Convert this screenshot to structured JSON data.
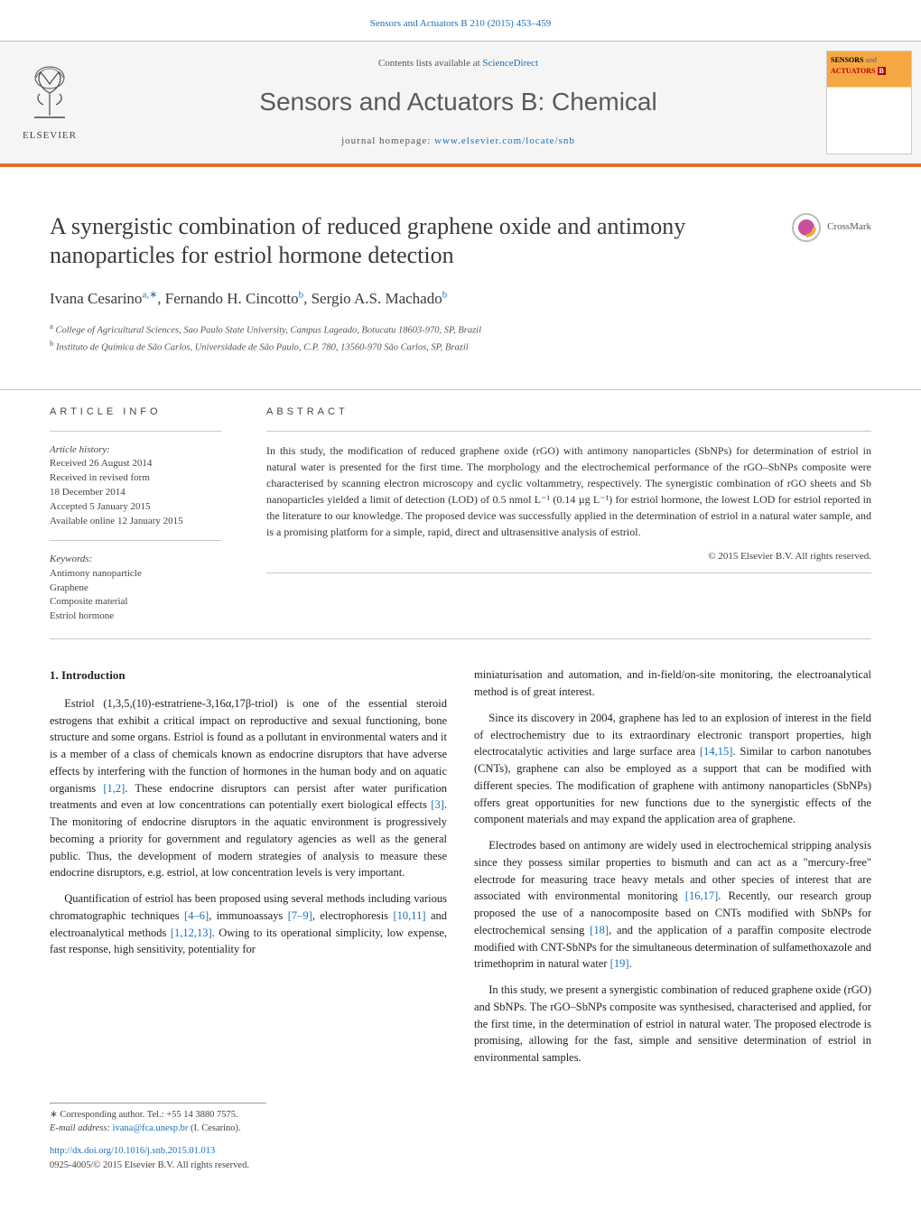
{
  "journal_ref": {
    "text": "Sensors and Actuators B 210 (2015) 453–459",
    "link_color": "#1a6fb8"
  },
  "header": {
    "contents_text": "Contents lists available at ",
    "contents_link": "ScienceDirect",
    "journal_title": "Sensors and Actuators B: Chemical",
    "homepage_label": "journal homepage: ",
    "homepage_url": "www.elsevier.com/locate/snb",
    "elsevier_label": "ELSEVIER",
    "cover_label1": "SENSORS",
    "cover_label2": "ACTUATORS",
    "cover_sub": "B"
  },
  "article": {
    "title": "A synergistic combination of reduced graphene oxide and antimony nanoparticles for estriol hormone detection",
    "crossmark_label": "CrossMark",
    "authors_html": "Ivana Cesarino",
    "author1": "Ivana Cesarino",
    "author1_sup": "a,∗",
    "author2": "Fernando H. Cincotto",
    "author2_sup": "b",
    "author3": "Sergio A.S. Machado",
    "author3_sup": "b",
    "affiliations": [
      {
        "sup": "a",
        "text": "College of Agricultural Sciences, Sao Paulo State University, Campus Lageado, Botucatu 18603-970, SP, Brazil"
      },
      {
        "sup": "b",
        "text": "Instituto de Química de São Carlos, Universidade de São Paulo, C.P. 780, 13560-970 São Carlos, SP, Brazil"
      }
    ]
  },
  "meta": {
    "info_heading": "ARTICLE INFO",
    "abstract_heading": "ABSTRACT",
    "history_label": "Article history:",
    "history": [
      "Received 26 August 2014",
      "Received in revised form",
      "18 December 2014",
      "Accepted 5 January 2015",
      "Available online 12 January 2015"
    ],
    "keywords_label": "Keywords:",
    "keywords": [
      "Antimony nanoparticle",
      "Graphene",
      "Composite material",
      "Estriol hormone"
    ],
    "abstract": "In this study, the modification of reduced graphene oxide (rGO) with antimony nanoparticles (SbNPs) for determination of estriol in natural water is presented for the first time. The morphology and the electrochemical performance of the rGO–SbNPs composite were characterised by scanning electron microscopy and cyclic voltammetry, respectively. The synergistic combination of rGO sheets and Sb nanoparticles yielded a limit of detection (LOD) of 0.5 nmol L⁻¹ (0.14 µg L⁻¹) for estriol hormone, the lowest LOD for estriol reported in the literature to our knowledge. The proposed device was successfully applied in the determination of estriol in a natural water sample, and is a promising platform for a simple, rapid, direct and ultrasensitive analysis of estriol.",
    "copyright": "© 2015 Elsevier B.V. All rights reserved."
  },
  "body": {
    "section_heading": "1. Introduction",
    "left_paragraphs": [
      "Estriol (1,3,5,(10)-estratriene-3,16α,17β-triol) is one of the essential steroid estrogens that exhibit a critical impact on reproductive and sexual functioning, bone structure and some organs. Estriol is found as a pollutant in environmental waters and it is a member of a class of chemicals known as endocrine disruptors that have adverse effects by interfering with the function of hormones in the human body and on aquatic organisms [1,2]. These endocrine disruptors can persist after water purification treatments and even at low concentrations can potentially exert biological effects [3]. The monitoring of endocrine disruptors in the aquatic environment is progressively becoming a priority for government and regulatory agencies as well as the general public. Thus, the development of modern strategies of analysis to measure these endocrine disruptors, e.g. estriol, at low concentration levels is very important.",
      "Quantification of estriol has been proposed using several methods including various chromatographic techniques [4–6], immunoassays [7–9], electrophoresis [10,11] and electroanalytical methods [1,12,13]. Owing to its operational simplicity, low expense, fast response, high sensitivity, potentiality for"
    ],
    "right_paragraphs": [
      "miniaturisation and automation, and in-field/on-site monitoring, the electroanalytical method is of great interest.",
      "Since its discovery in 2004, graphene has led to an explosion of interest in the field of electrochemistry due to its extraordinary electronic transport properties, high electrocatalytic activities and large surface area [14,15]. Similar to carbon nanotubes (CNTs), graphene can also be employed as a support that can be modified with different species. The modification of graphene with antimony nanoparticles (SbNPs) offers great opportunities for new functions due to the synergistic effects of the component materials and may expand the application area of graphene.",
      "Electrodes based on antimony are widely used in electrochemical stripping analysis since they possess similar properties to bismuth and can act as a \"mercury-free\" electrode for measuring trace heavy metals and other species of interest that are associated with environmental monitoring [16,17]. Recently, our research group proposed the use of a nanocomposite based on CNTs modified with SbNPs for electrochemical sensing [18], and the application of a paraffin composite electrode modified with CNT-SbNPs for the simultaneous determination of sulfamethoxazole and trimethoprim in natural water [19].",
      "In this study, we present a synergistic combination of reduced graphene oxide (rGO) and SbNPs. The rGO–SbNPs composite was synthesised, characterised and applied, for the first time, in the determination of estriol in natural water. The proposed electrode is promising, allowing for the fast, simple and sensitive determination of estriol in environmental samples."
    ],
    "ref_patterns": [
      "[1,2]",
      "[3]",
      "[4–6]",
      "[7–9]",
      "[10,11]",
      "[1,12,13]",
      "[14,15]",
      "[16,17]",
      "[18]",
      "[19]"
    ]
  },
  "footer": {
    "corr_label": "∗ Corresponding author. Tel.: +55 14 3880 7575.",
    "email_label": "E-mail address: ",
    "email": "ivana@fca.unesp.br",
    "email_who": " (I. Cesarino).",
    "doi": "http://dx.doi.org/10.1016/j.snb.2015.01.013",
    "issn": "0925-4005/© 2015 Elsevier B.V. All rights reserved."
  },
  "colors": {
    "link": "#1a6fb8",
    "band_border": "#e07030",
    "text": "#333333",
    "rule": "#c8c8c8"
  }
}
